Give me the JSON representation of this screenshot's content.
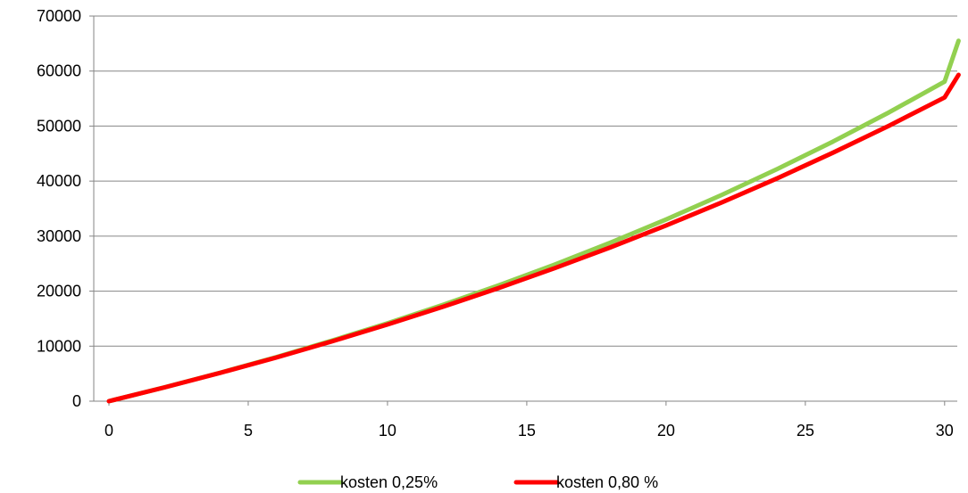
{
  "chart_data": {
    "type": "line",
    "title": "",
    "xlabel": "",
    "ylabel": "",
    "xlim": [
      0,
      31
    ],
    "ylim": [
      0,
      70000
    ],
    "x_ticks": [
      "0",
      "5",
      "10",
      "15",
      "20",
      "25",
      "30"
    ],
    "y_ticks": [
      "0",
      "10000",
      "20000",
      "30000",
      "40000",
      "50000",
      "60000",
      "70000"
    ],
    "grid": "horizontal",
    "legend_position": "bottom",
    "x": [
      0,
      2,
      4,
      6,
      8,
      10,
      12,
      14,
      16,
      18,
      20,
      22,
      24,
      26,
      28,
      30,
      30.5
    ],
    "series": [
      {
        "name": "kosten 0,25%",
        "color": "#92D050",
        "values": [
          0,
          2520,
          5190,
          8010,
          11000,
          14170,
          17520,
          21070,
          24830,
          28810,
          33030,
          37490,
          42210,
          47200,
          52490,
          58080,
          65500
        ]
      },
      {
        "name": "kosten 0,80 %",
        "color": "#FF0000",
        "values": [
          0,
          2510,
          5150,
          7930,
          10850,
          13930,
          17170,
          20580,
          24170,
          27950,
          31930,
          36120,
          40530,
          45170,
          50060,
          55200,
          59300
        ]
      }
    ]
  }
}
